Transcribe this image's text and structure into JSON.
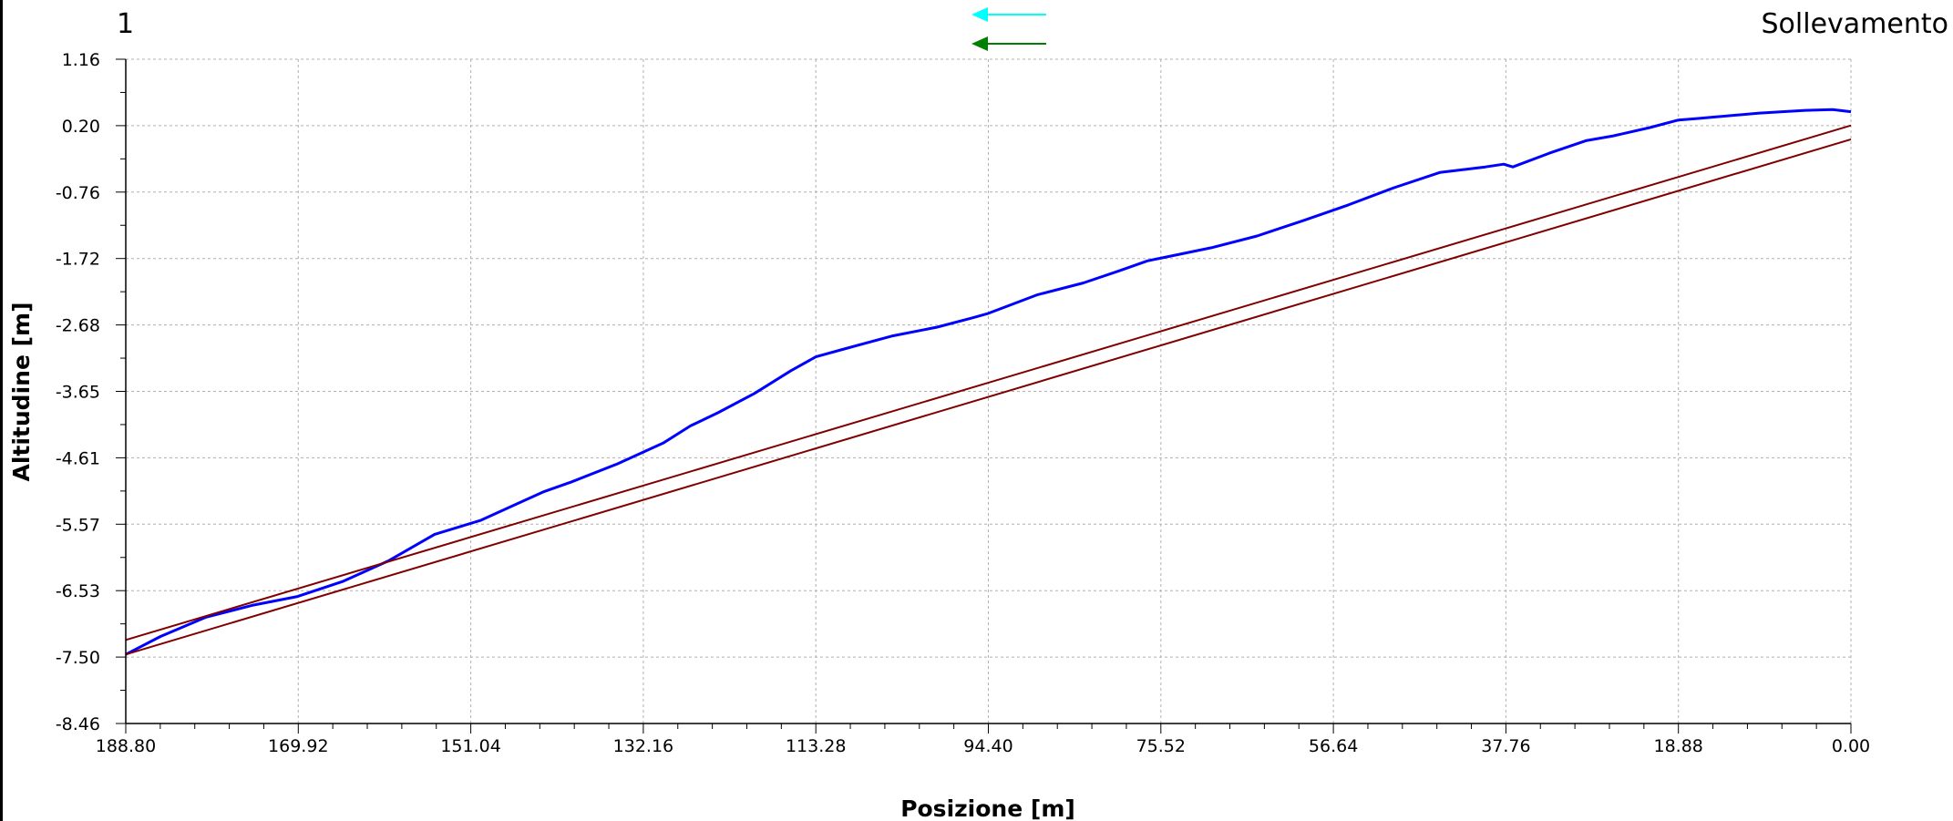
{
  "header": {
    "page_number": "1",
    "title": "Sollevamento"
  },
  "legend_arrows": [
    {
      "icon": "arrow-left-icon",
      "color": "#00ffff"
    },
    {
      "icon": "arrow-left-icon",
      "color": "#008000"
    }
  ],
  "chart_data": {
    "type": "line",
    "xlabel": "Posizione [m]",
    "ylabel": "Altitudine [m]",
    "xlim": [
      188.8,
      0.0
    ],
    "ylim": [
      -8.46,
      1.16
    ],
    "x_reversed": true,
    "grid": true,
    "x_ticks": [
      "188.80",
      "169.92",
      "151.04",
      "132.16",
      "113.28",
      "94.40",
      "75.52",
      "56.64",
      "37.76",
      "18.88",
      "0.00"
    ],
    "y_ticks": [
      "1.16",
      "0.20",
      "-0.76",
      "-1.72",
      "-2.68",
      "-3.65",
      "-4.61",
      "-5.57",
      "-6.53",
      "-7.50",
      "-8.46"
    ],
    "series": [
      {
        "color": "#0000ff",
        "x": [
          188.8,
          185.0,
          180.0,
          175.0,
          170.0,
          165.0,
          160.0,
          155.0,
          150.0,
          146.0,
          143.0,
          140.0,
          135.0,
          130.0,
          127.0,
          124.0,
          120.0,
          116.0,
          113.28,
          110.0,
          105.0,
          100.0,
          96.0,
          94.4,
          89.0,
          84.0,
          80.0,
          77.0,
          70.0,
          65.0,
          60.0,
          55.0,
          50.0,
          45.0,
          40.0,
          38.0,
          37.0,
          33.0,
          29.0,
          26.0,
          22.0,
          18.88,
          17.0,
          10.0,
          5.0,
          2.0,
          0.0
        ],
        "y": [
          -7.46,
          -7.2,
          -6.92,
          -6.75,
          -6.62,
          -6.4,
          -6.1,
          -5.72,
          -5.52,
          -5.28,
          -5.1,
          -4.96,
          -4.7,
          -4.4,
          -4.15,
          -3.96,
          -3.68,
          -3.35,
          -3.15,
          -3.03,
          -2.85,
          -2.72,
          -2.58,
          -2.52,
          -2.25,
          -2.08,
          -1.9,
          -1.76,
          -1.57,
          -1.4,
          -1.18,
          -0.95,
          -0.7,
          -0.48,
          -0.4,
          -0.36,
          -0.4,
          -0.2,
          -0.02,
          0.05,
          0.17,
          0.28,
          0.3,
          0.38,
          0.42,
          0.43,
          0.4
        ]
      },
      {
        "color": "#800000",
        "x": [
          188.8,
          0.0
        ],
        "y": [
          -7.25,
          0.2
        ]
      },
      {
        "color": "#800000",
        "x": [
          188.8,
          0.0
        ],
        "y": [
          -7.46,
          0.0
        ]
      }
    ]
  }
}
